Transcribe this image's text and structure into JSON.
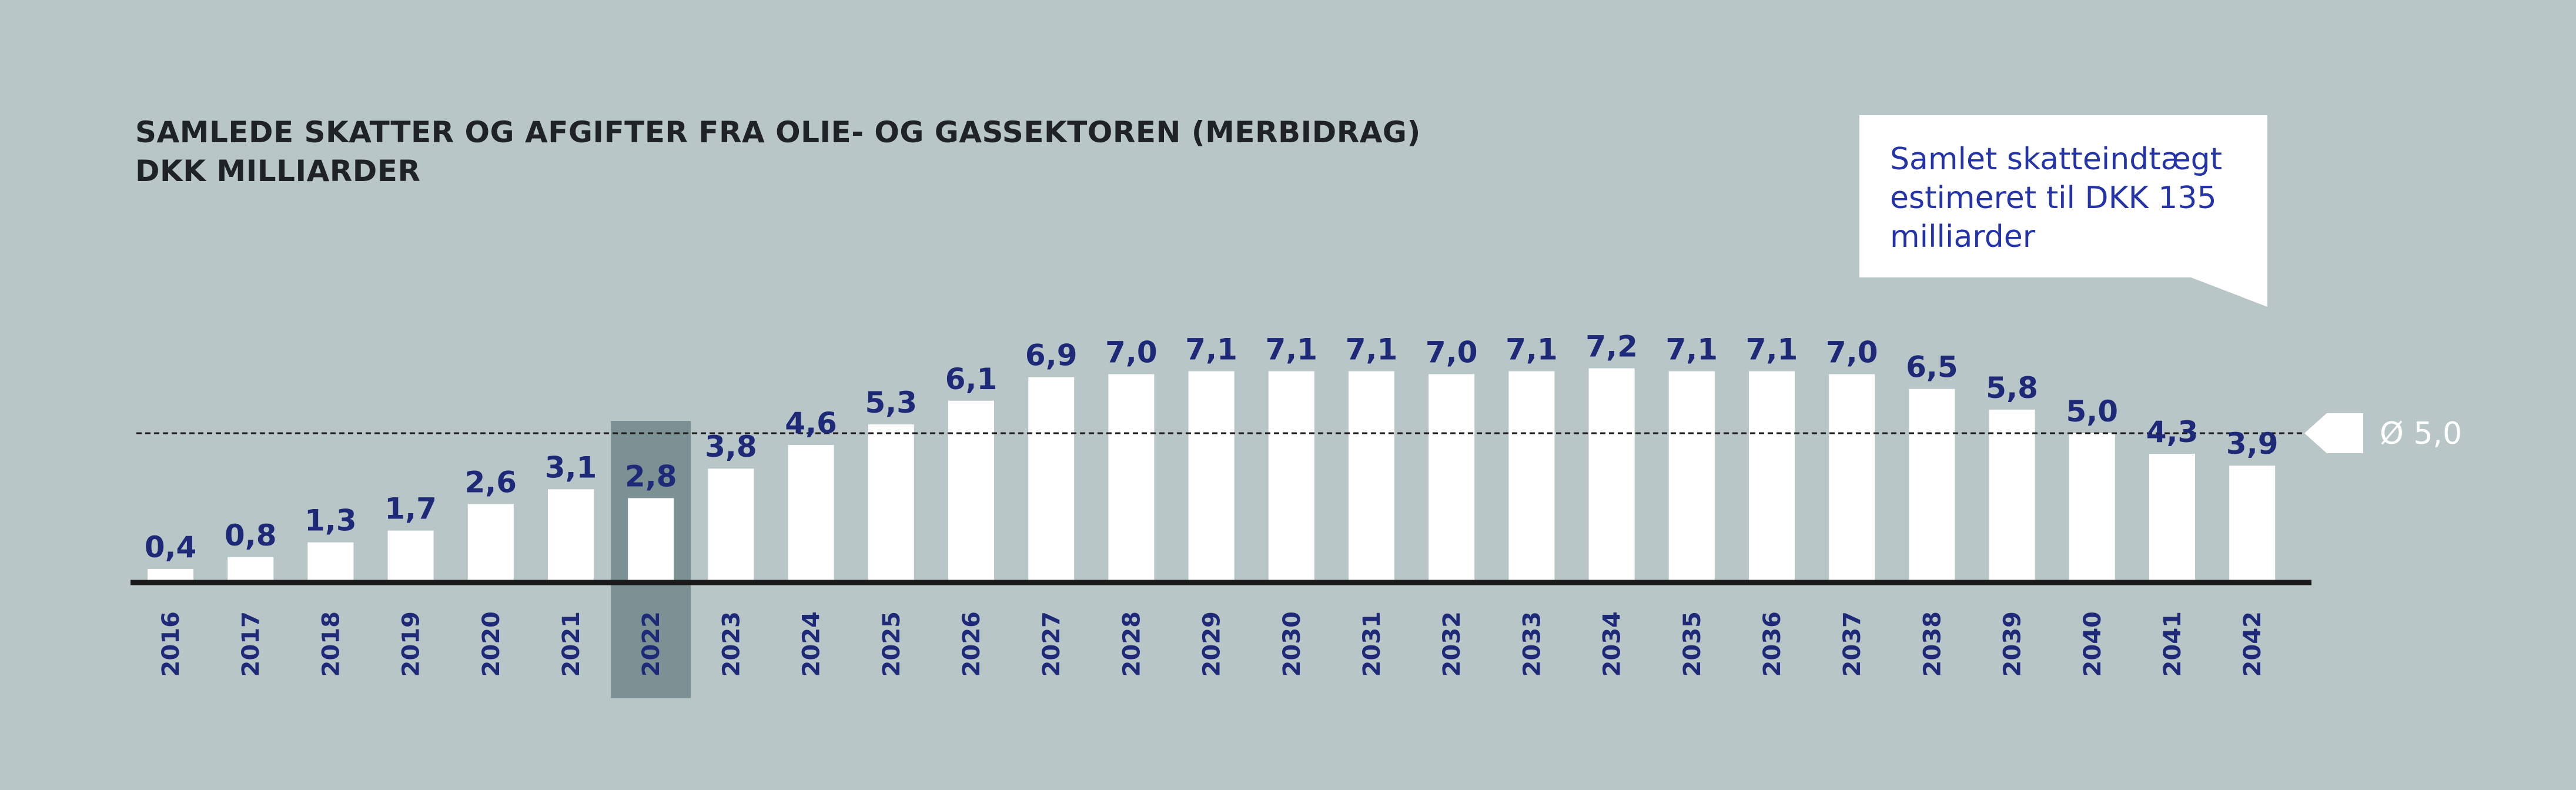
{
  "title": "SAMLEDE SKATTER OG AFGIFTER FRA OLIE- OG GASSEKTOREN (MERBIDRAG)",
  "subtitle": "DKK MILLIARDER",
  "callout": "Samlet skatteindtægt estimeret til DKK 135 milliarder",
  "average_label": "Ø 5,0",
  "colors": {
    "background": "#b9c6c7",
    "bar": "#ffffff",
    "label": "#1e2a78",
    "highlight": "#7c9193",
    "axis": "#1a1a1a",
    "callout_text": "#2433a8"
  },
  "chart_data": {
    "type": "bar",
    "title": "SAMLEDE SKATTER OG AFGIFTER FRA OLIE- OG GASSEKTOREN (MERBIDRAG)",
    "subtitle": "DKK MILLIARDER",
    "categories": [
      "2016",
      "2017",
      "2018",
      "2019",
      "2020",
      "2021",
      "2022",
      "2023",
      "2024",
      "2025",
      "2026",
      "2027",
      "2028",
      "2029",
      "2030",
      "2031",
      "2032",
      "2033",
      "2034",
      "2035",
      "2036",
      "2037",
      "2038",
      "2039",
      "2040",
      "2041",
      "2042"
    ],
    "values": [
      0.4,
      0.8,
      1.3,
      1.7,
      2.6,
      3.1,
      2.8,
      3.8,
      4.6,
      5.3,
      6.1,
      6.9,
      7.0,
      7.1,
      7.1,
      7.1,
      7.0,
      7.1,
      7.2,
      7.1,
      7.1,
      7.0,
      6.5,
      5.8,
      5.0,
      4.3,
      3.9
    ],
    "value_labels": [
      "0,4",
      "0,8",
      "1,3",
      "1,7",
      "2,6",
      "3,1",
      "2,8",
      "3,8",
      "4,6",
      "5,3",
      "6,1",
      "6,9",
      "7,0",
      "7,1",
      "7,1",
      "7,1",
      "7,0",
      "7,1",
      "7,2",
      "7,1",
      "7,1",
      "7,0",
      "6,5",
      "5,8",
      "5,0",
      "4,3",
      "3,9"
    ],
    "highlight_category": "2022",
    "average": 5.0,
    "average_label": "Ø 5,0",
    "ylim": [
      0,
      8
    ],
    "grid": false,
    "xlabel": "",
    "ylabel": ""
  }
}
